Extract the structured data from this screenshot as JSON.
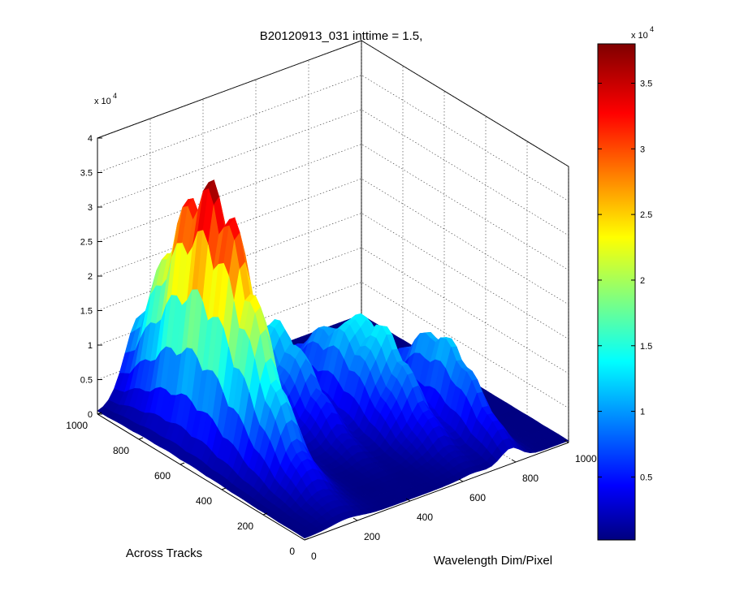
{
  "chart_data": {
    "type": "surface",
    "title": "B20120913_031 inttime = 1.5,",
    "xlabel": "Wavelength Dim/Pixel",
    "ylabel": "Across Tracks",
    "zlabel": "",
    "x_ticks": [
      "0",
      "200",
      "400",
      "600",
      "800",
      "1000"
    ],
    "y_ticks": [
      "0",
      "200",
      "400",
      "600",
      "800",
      "1000"
    ],
    "z_ticks": [
      "0",
      "0.5",
      "1",
      "1.5",
      "2",
      "2.5",
      "3",
      "3.5",
      "4"
    ],
    "z_multiplier": "x 10",
    "z_exponent": "4",
    "xlim": [
      0,
      1000
    ],
    "ylim": [
      0,
      1000
    ],
    "zlim": [
      0,
      40000
    ],
    "grid": true,
    "colormap": "jet",
    "colorbar": {
      "range": [
        200,
        38000
      ],
      "ticks": [
        "0.5",
        "1",
        "1.5",
        "2",
        "2.5",
        "3",
        "3.5"
      ],
      "multiplier": "x 10",
      "exponent": "4"
    },
    "approx_peaks": [
      {
        "wavelength_pixel": 160,
        "track": 650,
        "value": 38000
      },
      {
        "wavelength_pixel": 330,
        "track": 800,
        "value": 15000
      },
      {
        "wavelength_pixel": 420,
        "track": 650,
        "value": 13000
      },
      {
        "wavelength_pixel": 560,
        "track": 560,
        "value": 11000
      },
      {
        "wavelength_pixel": 640,
        "track": 460,
        "value": 13500
      },
      {
        "wavelength_pixel": 780,
        "track": 330,
        "value": 13000
      }
    ]
  }
}
